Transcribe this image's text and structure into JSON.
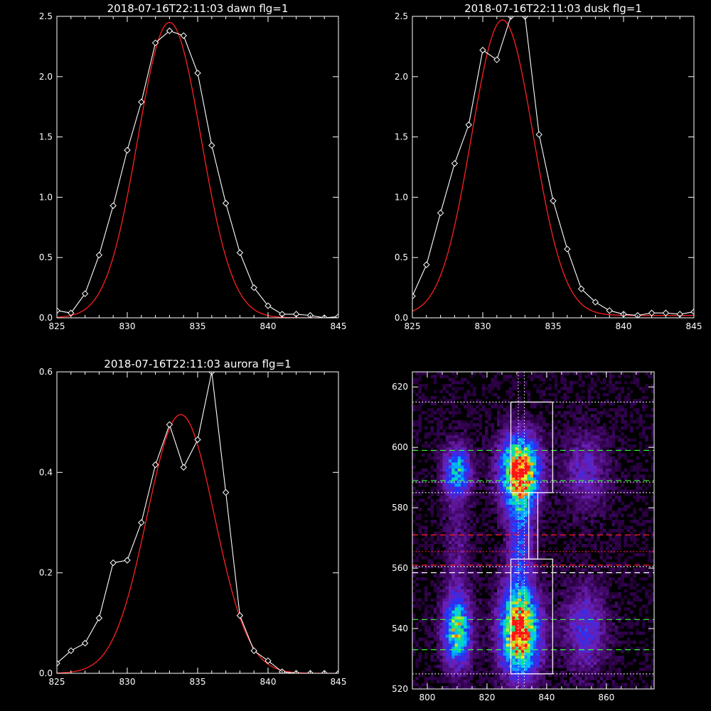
{
  "chart_data": [
    {
      "type": "line",
      "title": "2018-07-16T22:11:03 dawn flg=1",
      "xlim": [
        825,
        845
      ],
      "ylim": [
        0,
        2.5
      ],
      "xticks": [
        "825",
        "830",
        "835",
        "840",
        "845"
      ],
      "yticks": [
        "0.0",
        "0.5",
        "1.0",
        "1.5",
        "2.0",
        "2.5"
      ],
      "series": [
        {
          "kind": "data",
          "color": "#ffffff",
          "markers": "diamond",
          "x": [
            825,
            826,
            827,
            828,
            829,
            830,
            831,
            832,
            833,
            834,
            835,
            836,
            837,
            838,
            839,
            840,
            841,
            842,
            843,
            844,
            845
          ],
          "y": [
            0.06,
            0.04,
            0.2,
            0.52,
            0.93,
            1.39,
            1.79,
            2.28,
            2.38,
            2.34,
            2.03,
            1.43,
            0.95,
            0.54,
            0.25,
            0.1,
            0.03,
            0.03,
            0.02,
            0.0,
            0.01
          ]
        },
        {
          "kind": "fit",
          "color": "#ff2020",
          "gaussian": {
            "amplitude": 2.45,
            "center": 833.0,
            "sigma": 2.25,
            "offset": 0.0
          }
        }
      ]
    },
    {
      "type": "line",
      "title": "2018-07-16T22:11:03 dusk flg=1",
      "xlim": [
        825,
        845
      ],
      "ylim": [
        0,
        2.5
      ],
      "xticks": [
        "825",
        "830",
        "835",
        "840",
        "845"
      ],
      "yticks": [
        "0.0",
        "0.5",
        "1.0",
        "1.5",
        "2.0",
        "2.5"
      ],
      "series": [
        {
          "kind": "data",
          "color": "#ffffff",
          "markers": "diamond",
          "x": [
            825,
            826,
            827,
            828,
            829,
            830,
            831,
            832,
            833,
            834,
            835,
            836,
            837,
            838,
            839,
            840,
            841,
            842,
            843,
            844,
            845
          ],
          "y": [
            0.18,
            0.44,
            0.87,
            1.28,
            1.6,
            2.22,
            2.14,
            2.5,
            2.5,
            1.52,
            0.97,
            0.57,
            0.24,
            0.13,
            0.06,
            0.03,
            0.02,
            0.04,
            0.04,
            0.03,
            0.05
          ]
        },
        {
          "kind": "fit",
          "color": "#ff2020",
          "gaussian": {
            "amplitude": 2.45,
            "center": 831.4,
            "sigma": 2.2,
            "offset": 0.02
          }
        }
      ]
    },
    {
      "type": "line",
      "title": "2018-07-16T22:11:03 aurora flg=1",
      "xlim": [
        825,
        845
      ],
      "ylim": [
        0,
        0.6
      ],
      "xticks": [
        "825",
        "830",
        "835",
        "840",
        "845"
      ],
      "yticks": [
        "0.0",
        "0.2",
        "0.4",
        "0.6"
      ],
      "series": [
        {
          "kind": "data",
          "color": "#ffffff",
          "markers": "diamond",
          "x": [
            825,
            826,
            827,
            828,
            829,
            830,
            831,
            832,
            833,
            834,
            835,
            836,
            837,
            838,
            839,
            840,
            841,
            842,
            843,
            844,
            845
          ],
          "y": [
            0.02,
            0.045,
            0.06,
            0.11,
            0.22,
            0.225,
            0.3,
            0.415,
            0.495,
            0.41,
            0.465,
            0.6,
            0.36,
            0.115,
            0.045,
            0.025,
            0.003,
            0.0,
            0.0,
            0.0,
            0.0
          ]
        },
        {
          "kind": "fit",
          "color": "#ff2020",
          "gaussian": {
            "amplitude": 0.515,
            "center": 833.8,
            "sigma": 2.4,
            "offset": 0.0
          }
        }
      ]
    },
    {
      "type": "heatmap",
      "title": "",
      "xlim": [
        795,
        876
      ],
      "ylim": [
        520,
        625
      ],
      "xticks": [
        "800",
        "820",
        "840",
        "860"
      ],
      "yticks": [
        "520",
        "540",
        "560",
        "580",
        "600",
        "620"
      ],
      "blobs": [
        {
          "x": 810,
          "y": 592,
          "sx": 3.2,
          "sy": 6,
          "amp": 0.55
        },
        {
          "x": 810,
          "y": 539,
          "sx": 3.2,
          "sy": 8,
          "amp": 0.7
        },
        {
          "x": 831,
          "y": 592,
          "sx": 4.5,
          "sy": 8,
          "amp": 1.0
        },
        {
          "x": 831,
          "y": 539,
          "sx": 4.5,
          "sy": 10,
          "amp": 1.0
        },
        {
          "x": 831,
          "y": 570,
          "sx": 3.0,
          "sy": 12,
          "amp": 0.35
        },
        {
          "x": 853,
          "y": 592,
          "sx": 5,
          "sy": 9,
          "amp": 0.25
        },
        {
          "x": 853,
          "y": 540,
          "sx": 5,
          "sy": 10,
          "amp": 0.3
        },
        {
          "x": 810,
          "y": 566,
          "sx": 3,
          "sy": 12,
          "amp": 0.15
        }
      ],
      "hlines": [
        {
          "y": 615,
          "color": "#ffffff",
          "style": "dotted"
        },
        {
          "y": 599,
          "color": "#33ff33",
          "style": "dashed"
        },
        {
          "y": 589,
          "color": "#33ff33",
          "style": "dashed"
        },
        {
          "y": 588.5,
          "color": "#ffffff",
          "style": "dotted"
        },
        {
          "y": 585,
          "color": "#ffffff",
          "style": "dotted"
        },
        {
          "y": 571,
          "color": "#ff2020",
          "style": "dashed"
        },
        {
          "y": 565.5,
          "color": "#ff2020",
          "style": "dotted"
        },
        {
          "y": 561,
          "color": "#ff2020",
          "style": "dashed"
        },
        {
          "y": 560.5,
          "color": "#ffffff",
          "style": "dotted"
        },
        {
          "y": 558.5,
          "color": "#ffffff",
          "style": "dashed"
        },
        {
          "y": 543,
          "color": "#33ff33",
          "style": "dashed"
        },
        {
          "y": 533,
          "color": "#33ff33",
          "style": "dashed"
        },
        {
          "y": 525,
          "color": "#ffffff",
          "style": "dotted"
        }
      ],
      "vlines": [
        {
          "x": 830.5,
          "color": "#ffffff",
          "style": "dotted"
        },
        {
          "x": 832.5,
          "color": "#ffffff",
          "style": "dotted"
        }
      ],
      "boxes": [
        {
          "x0": 828,
          "x1": 842,
          "y0": 585,
          "y1": 615
        },
        {
          "x0": 828,
          "x1": 842,
          "y0": 525,
          "y1": 563
        },
        {
          "x0": 834,
          "x1": 837,
          "y0": 563,
          "y1": 585
        }
      ]
    }
  ]
}
